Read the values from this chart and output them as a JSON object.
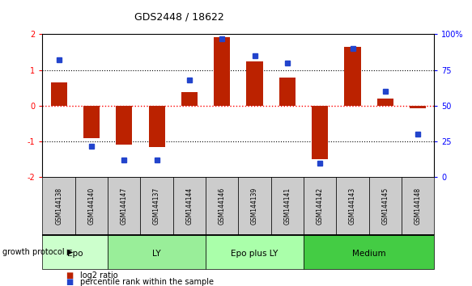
{
  "title": "GDS2448 / 18622",
  "samples": [
    "GSM144138",
    "GSM144140",
    "GSM144147",
    "GSM144137",
    "GSM144144",
    "GSM144146",
    "GSM144139",
    "GSM144141",
    "GSM144142",
    "GSM144143",
    "GSM144145",
    "GSM144148"
  ],
  "log2_ratio": [
    0.65,
    -0.9,
    -1.08,
    -1.15,
    0.38,
    1.93,
    1.25,
    0.8,
    -1.5,
    1.65,
    0.2,
    -0.06
  ],
  "percentile_rank": [
    82,
    22,
    12,
    12,
    68,
    97,
    85,
    80,
    10,
    90,
    60,
    30
  ],
  "groups": [
    {
      "name": "Epo",
      "start": 0,
      "end": 2,
      "color": "#ccffcc"
    },
    {
      "name": "LY",
      "start": 2,
      "end": 5,
      "color": "#99ee99"
    },
    {
      "name": "Epo plus LY",
      "start": 5,
      "end": 8,
      "color": "#aaffaa"
    },
    {
      "name": "Medium",
      "start": 8,
      "end": 12,
      "color": "#44cc44"
    }
  ],
  "bar_color": "#bb2200",
  "dot_color": "#2244cc",
  "ylim_left": [
    -2,
    2
  ],
  "ylim_right": [
    0,
    100
  ],
  "yticks_left": [
    -2,
    -1,
    0,
    1,
    2
  ],
  "yticks_right": [
    0,
    25,
    50,
    75,
    100
  ],
  "ytick_labels_right": [
    "0",
    "25",
    "50",
    "75",
    "100%"
  ],
  "hline_red": 0,
  "hlines_black": [
    -1,
    1
  ],
  "legend_red": "log2 ratio",
  "legend_blue": "percentile rank within the sample",
  "growth_protocol_label": "growth protocol"
}
